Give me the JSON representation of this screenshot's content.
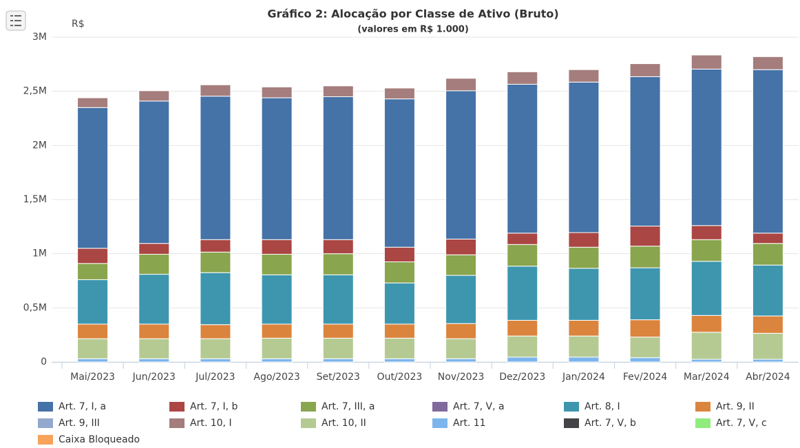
{
  "chart_data": {
    "type": "stacked_bar",
    "title": "Gráfico 2: Alocação por Classe de Ativo (Bruto)",
    "subtitle": "(valores em R$ 1.000)",
    "y_label": "R$",
    "categories": [
      "Mai/2023",
      "Jun/2023",
      "Jul/2023",
      "Ago/2023",
      "Set/2023",
      "Out/2023",
      "Nov/2023",
      "Dez/2023",
      "Jan/2024",
      "Fev/2024",
      "Mar/2024",
      "Abr/2024"
    ],
    "ylim": [
      0,
      3000000
    ],
    "yticks": [
      0,
      {
        "value": 500000,
        "label": "0,5M"
      },
      {
        "value": 1000000,
        "label": "1M"
      },
      {
        "value": 1500000,
        "label": "1,5M"
      },
      {
        "value": 2000000,
        "label": "2M"
      },
      {
        "value": 2500000,
        "label": "2,5M"
      },
      {
        "value": 3000000,
        "label": "3M"
      }
    ],
    "grid": true,
    "legend": "bottom",
    "stack_order": [
      11,
      6,
      9,
      8,
      5,
      4,
      2,
      3,
      10,
      12,
      1,
      0,
      7
    ],
    "series": [
      {
        "name": "Art. 7, I, a",
        "color": "#4572a7",
        "values": [
          1300000,
          1315000,
          1325000,
          1310000,
          1320000,
          1370000,
          1370000,
          1375000,
          1390000,
          1380000,
          1445000,
          1510000
        ]
      },
      {
        "name": "Art. 7, I, b",
        "color": "#aa4643",
        "values": [
          140000,
          100000,
          115000,
          135000,
          130000,
          135000,
          145000,
          105000,
          135000,
          185000,
          130000,
          95000
        ]
      },
      {
        "name": "Art. 7, III, a",
        "color": "#89a54e",
        "values": [
          150000,
          185000,
          190000,
          190000,
          195000,
          195000,
          190000,
          200000,
          195000,
          200000,
          200000,
          200000
        ]
      },
      {
        "name": "Art. 7, V, a",
        "color": "#80699b",
        "values": [
          0,
          0,
          0,
          0,
          0,
          0,
          0,
          0,
          0,
          0,
          0,
          0
        ]
      },
      {
        "name": "Art. 8, I",
        "color": "#3d96ae",
        "values": [
          410000,
          460000,
          480000,
          455000,
          455000,
          380000,
          445000,
          500000,
          480000,
          480000,
          500000,
          470000
        ]
      },
      {
        "name": "Art. 9, II",
        "color": "#db843d",
        "values": [
          135000,
          135000,
          130000,
          130000,
          130000,
          130000,
          140000,
          145000,
          145000,
          160000,
          155000,
          160000
        ]
      },
      {
        "name": "Art. 9, III",
        "color": "#92a8cd",
        "values": [
          0,
          0,
          0,
          0,
          0,
          0,
          0,
          0,
          0,
          0,
          0,
          0
        ]
      },
      {
        "name": "Art. 10, I",
        "color": "#a47d7c",
        "values": [
          90000,
          95000,
          105000,
          100000,
          100000,
          100000,
          115000,
          115000,
          115000,
          120000,
          130000,
          120000
        ]
      },
      {
        "name": "Art. 10, II",
        "color": "#b5ca92",
        "values": [
          185000,
          185000,
          185000,
          190000,
          190000,
          190000,
          185000,
          195000,
          195000,
          190000,
          250000,
          240000
        ]
      },
      {
        "name": "Art. 11",
        "color": "#7cb5ec",
        "values": [
          30000,
          30000,
          30000,
          30000,
          30000,
          30000,
          30000,
          45000,
          45000,
          40000,
          25000,
          25000
        ]
      },
      {
        "name": "Art. 7, V, b",
        "color": "#434348",
        "values": [
          0,
          0,
          0,
          0,
          0,
          0,
          0,
          0,
          0,
          0,
          0,
          0
        ]
      },
      {
        "name": "Art. 7, V, c",
        "color": "#90ed7d",
        "values": [
          0,
          0,
          0,
          0,
          0,
          0,
          0,
          0,
          0,
          0,
          0,
          0
        ]
      },
      {
        "name": "Caixa Bloqueado",
        "color": "#f7a35c",
        "values": [
          0,
          0,
          0,
          0,
          0,
          0,
          0,
          0,
          0,
          0,
          0,
          0
        ]
      }
    ]
  }
}
